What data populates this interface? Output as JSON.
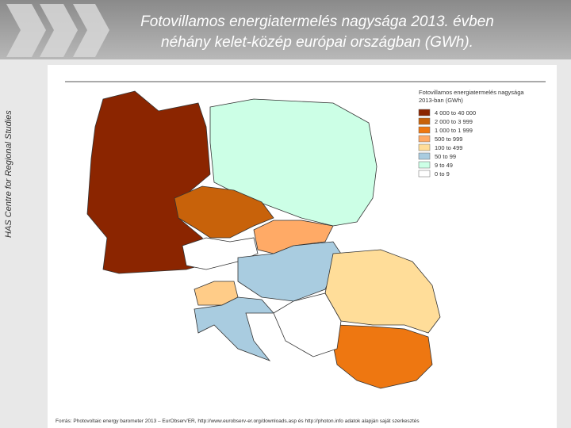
{
  "header": {
    "title_line1": "Fotovillamos energiatermelés nagysága 2013. évben",
    "title_line2": "néhány kelet-közép európai országban (GWh).",
    "side_text": "HAS Centre for Regional Studies"
  },
  "legend": {
    "title_line1": "Fotovillamos energiatermelés nagysága",
    "title_line2": "2013-ban (GWh)",
    "items": [
      {
        "label": "4 000 to 40 000",
        "color": "#8b2500"
      },
      {
        "label": "2 000 to 3 999",
        "color": "#c8620a"
      },
      {
        "label": "1 000 to 1 999",
        "color": "#ee7711"
      },
      {
        "label": "500 to 999",
        "color": "#ffaa66"
      },
      {
        "label": "100 to 499",
        "color": "#ffdd99"
      },
      {
        "label": "50 to 99",
        "color": "#a9cce0"
      },
      {
        "label": "9 to 49",
        "color": "#ccffe6"
      },
      {
        "label": "0 to 9",
        "color": "#ffffff"
      }
    ]
  },
  "source": "Forrás: Photovoltaic energy barometer 2013 – EurObserv'ER, http://www.eurobserv-er.org/downloads.asp és http://photon.info adatok alapján saját szerkesztés"
}
